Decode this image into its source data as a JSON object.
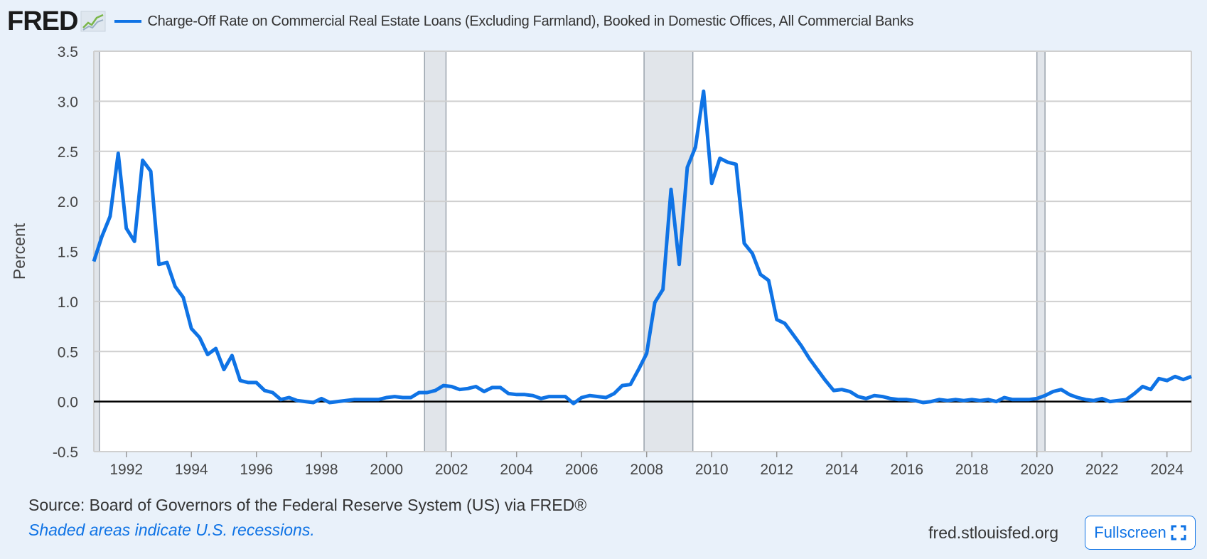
{
  "brand": {
    "logo_text": "FRED",
    "logo_icon": "fred-chart-icon"
  },
  "legend": {
    "label": "Charge-Off Rate on Commercial Real Estate Loans (Excluding Farmland), Booked in Domestic Offices, All Commercial Banks",
    "color": "#0f73e5"
  },
  "footer": {
    "source": "Source: Board of Governors of the Federal Reserve System (US) via FRED®",
    "note": "Shaded areas indicate U.S. recessions.",
    "site": "fred.stlouisfed.org",
    "fullscreen_label": "Fullscreen",
    "fullscreen_icon": "expand-icon"
  },
  "chart_data": {
    "type": "line",
    "title": "",
    "xlabel": "",
    "ylabel": "Percent",
    "xlim": [
      1991.0,
      2024.75
    ],
    "ylim": [
      -0.5,
      3.5
    ],
    "yticks": [
      -0.5,
      0.0,
      0.5,
      1.0,
      1.5,
      2.0,
      2.5,
      3.0,
      3.5
    ],
    "ytick_labels": [
      "-0.5",
      "0.0",
      "0.5",
      "1.0",
      "1.5",
      "2.0",
      "2.5",
      "3.0",
      "3.5"
    ],
    "xticks": [
      1992,
      1994,
      1996,
      1998,
      2000,
      2002,
      2004,
      2006,
      2008,
      2010,
      2012,
      2014,
      2016,
      2018,
      2020,
      2022,
      2024
    ],
    "xtick_labels": [
      "1992",
      "1994",
      "1996",
      "1998",
      "2000",
      "2002",
      "2004",
      "2006",
      "2008",
      "2010",
      "2012",
      "2014",
      "2016",
      "2018",
      "2020",
      "2022",
      "2024"
    ],
    "grid": true,
    "zero_line": true,
    "line_color": "#0f73e5",
    "recessions": [
      [
        1991.0,
        1991.17
      ],
      [
        2001.17,
        2001.83
      ],
      [
        2007.92,
        2009.42
      ],
      [
        2020.0,
        2020.25
      ]
    ],
    "series": [
      {
        "values": [
          [
            1991.0,
            1.4
          ],
          [
            1991.25,
            1.65
          ],
          [
            1991.5,
            1.85
          ],
          [
            1991.75,
            2.48
          ],
          [
            1992.0,
            1.73
          ],
          [
            1992.25,
            1.6
          ],
          [
            1992.5,
            2.41
          ],
          [
            1992.75,
            2.3
          ],
          [
            1993.0,
            1.37
          ],
          [
            1993.25,
            1.39
          ],
          [
            1993.5,
            1.15
          ],
          [
            1993.75,
            1.04
          ],
          [
            1994.0,
            0.73
          ],
          [
            1994.25,
            0.64
          ],
          [
            1994.5,
            0.47
          ],
          [
            1994.75,
            0.53
          ],
          [
            1995.0,
            0.32
          ],
          [
            1995.25,
            0.46
          ],
          [
            1995.5,
            0.21
          ],
          [
            1995.75,
            0.19
          ],
          [
            1996.0,
            0.19
          ],
          [
            1996.25,
            0.11
          ],
          [
            1996.5,
            0.09
          ],
          [
            1996.75,
            0.02
          ],
          [
            1997.0,
            0.04
          ],
          [
            1997.25,
            0.01
          ],
          [
            1997.5,
            0.0
          ],
          [
            1997.75,
            -0.01
          ],
          [
            1998.0,
            0.03
          ],
          [
            1998.25,
            -0.01
          ],
          [
            1998.5,
            0.0
          ],
          [
            1998.75,
            0.01
          ],
          [
            1999.0,
            0.02
          ],
          [
            1999.25,
            0.02
          ],
          [
            1999.5,
            0.02
          ],
          [
            1999.75,
            0.02
          ],
          [
            2000.0,
            0.04
          ],
          [
            2000.25,
            0.05
          ],
          [
            2000.5,
            0.04
          ],
          [
            2000.75,
            0.04
          ],
          [
            2001.0,
            0.09
          ],
          [
            2001.25,
            0.09
          ],
          [
            2001.5,
            0.11
          ],
          [
            2001.75,
            0.16
          ],
          [
            2002.0,
            0.15
          ],
          [
            2002.25,
            0.12
          ],
          [
            2002.5,
            0.13
          ],
          [
            2002.75,
            0.15
          ],
          [
            2003.0,
            0.1
          ],
          [
            2003.25,
            0.14
          ],
          [
            2003.5,
            0.14
          ],
          [
            2003.75,
            0.08
          ],
          [
            2004.0,
            0.07
          ],
          [
            2004.25,
            0.07
          ],
          [
            2004.5,
            0.06
          ],
          [
            2004.75,
            0.03
          ],
          [
            2005.0,
            0.05
          ],
          [
            2005.25,
            0.05
          ],
          [
            2005.5,
            0.05
          ],
          [
            2005.75,
            -0.02
          ],
          [
            2006.0,
            0.04
          ],
          [
            2006.25,
            0.06
          ],
          [
            2006.5,
            0.05
          ],
          [
            2006.75,
            0.04
          ],
          [
            2007.0,
            0.08
          ],
          [
            2007.25,
            0.16
          ],
          [
            2007.5,
            0.17
          ],
          [
            2007.75,
            0.32
          ],
          [
            2008.0,
            0.48
          ],
          [
            2008.25,
            0.99
          ],
          [
            2008.5,
            1.12
          ],
          [
            2008.75,
            2.12
          ],
          [
            2009.0,
            1.37
          ],
          [
            2009.25,
            2.34
          ],
          [
            2009.5,
            2.54
          ],
          [
            2009.75,
            3.1
          ],
          [
            2010.0,
            2.18
          ],
          [
            2010.25,
            2.43
          ],
          [
            2010.5,
            2.39
          ],
          [
            2010.75,
            2.37
          ],
          [
            2011.0,
            1.58
          ],
          [
            2011.25,
            1.48
          ],
          [
            2011.5,
            1.27
          ],
          [
            2011.75,
            1.21
          ],
          [
            2012.0,
            0.82
          ],
          [
            2012.25,
            0.78
          ],
          [
            2012.5,
            0.67
          ],
          [
            2012.75,
            0.56
          ],
          [
            2013.0,
            0.43
          ],
          [
            2013.25,
            0.32
          ],
          [
            2013.5,
            0.21
          ],
          [
            2013.75,
            0.11
          ],
          [
            2014.0,
            0.12
          ],
          [
            2014.25,
            0.1
          ],
          [
            2014.5,
            0.05
          ],
          [
            2014.75,
            0.03
          ],
          [
            2015.0,
            0.06
          ],
          [
            2015.25,
            0.05
          ],
          [
            2015.5,
            0.03
          ],
          [
            2015.75,
            0.02
          ],
          [
            2016.0,
            0.02
          ],
          [
            2016.25,
            0.01
          ],
          [
            2016.5,
            -0.01
          ],
          [
            2016.75,
            0.0
          ],
          [
            2017.0,
            0.02
          ],
          [
            2017.25,
            0.01
          ],
          [
            2017.5,
            0.02
          ],
          [
            2017.75,
            0.01
          ],
          [
            2018.0,
            0.02
          ],
          [
            2018.25,
            0.01
          ],
          [
            2018.5,
            0.02
          ],
          [
            2018.75,
            0.0
          ],
          [
            2019.0,
            0.04
          ],
          [
            2019.25,
            0.02
          ],
          [
            2019.5,
            0.02
          ],
          [
            2019.75,
            0.02
          ],
          [
            2020.0,
            0.03
          ],
          [
            2020.25,
            0.06
          ],
          [
            2020.5,
            0.1
          ],
          [
            2020.75,
            0.12
          ],
          [
            2021.0,
            0.07
          ],
          [
            2021.25,
            0.04
          ],
          [
            2021.5,
            0.02
          ],
          [
            2021.75,
            0.01
          ],
          [
            2022.0,
            0.03
          ],
          [
            2022.25,
            0.0
          ],
          [
            2022.5,
            0.01
          ],
          [
            2022.75,
            0.02
          ],
          [
            2023.0,
            0.08
          ],
          [
            2023.25,
            0.15
          ],
          [
            2023.5,
            0.12
          ],
          [
            2023.75,
            0.23
          ],
          [
            2024.0,
            0.21
          ],
          [
            2024.25,
            0.25
          ],
          [
            2024.5,
            0.22
          ],
          [
            2024.75,
            0.25
          ]
        ]
      }
    ]
  }
}
